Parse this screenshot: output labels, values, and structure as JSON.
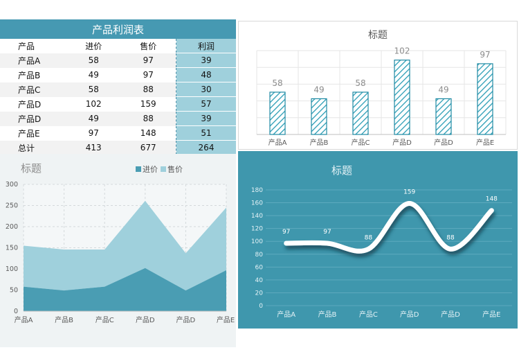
{
  "table": {
    "title": "产品利润表",
    "headers": [
      "产品",
      "进价",
      "售价",
      "利润"
    ],
    "rows": [
      [
        "产品A",
        "58",
        "97",
        "39"
      ],
      [
        "产品B",
        "49",
        "97",
        "48"
      ],
      [
        "产品C",
        "58",
        "88",
        "30"
      ],
      [
        "产品D",
        "102",
        "159",
        "57"
      ],
      [
        "产品D",
        "49",
        "88",
        "39"
      ],
      [
        "产品E",
        "97",
        "148",
        "51"
      ],
      [
        "总计",
        "413",
        "677",
        "264"
      ]
    ]
  },
  "chart_data": [
    {
      "type": "bar",
      "title": "标题",
      "categories": [
        "产品A",
        "产品B",
        "产品C",
        "产品D",
        "产品D",
        "产品E"
      ],
      "values": [
        58,
        49,
        58,
        102,
        49,
        97
      ],
      "ylim": [
        0,
        115
      ],
      "grid": true,
      "colors": {
        "bar": "#1f8aa3",
        "hatch": "#2a9db5"
      }
    },
    {
      "type": "area",
      "title": "标题",
      "categories": [
        "产品A",
        "产品B",
        "产品C",
        "产品D",
        "产品D",
        "产品E"
      ],
      "series": [
        {
          "name": "进价",
          "values": [
            58,
            49,
            58,
            102,
            49,
            97
          ],
          "color": "#4a9db3"
        },
        {
          "name": "售价",
          "values": [
            97,
            97,
            88,
            159,
            88,
            148
          ],
          "color": "#9fd0dc"
        }
      ],
      "stacked": true,
      "ylim": [
        0,
        300
      ],
      "yticks": [
        "0",
        "50",
        "100",
        "150",
        "200",
        "250",
        "300"
      ],
      "legend": "top-right",
      "grid": true
    },
    {
      "type": "line",
      "title": "标题",
      "categories": [
        "产品A",
        "产品B",
        "产品C",
        "产品D",
        "产品D",
        "产品E"
      ],
      "values": [
        97,
        97,
        88,
        159,
        88,
        148
      ],
      "ylim": [
        0,
        180
      ],
      "yticks": [
        "0",
        "20",
        "40",
        "60",
        "80",
        "100",
        "120",
        "140",
        "160",
        "180"
      ],
      "grid": true,
      "colors": {
        "background": "#3f97ad",
        "line": "#ffffff"
      }
    }
  ]
}
